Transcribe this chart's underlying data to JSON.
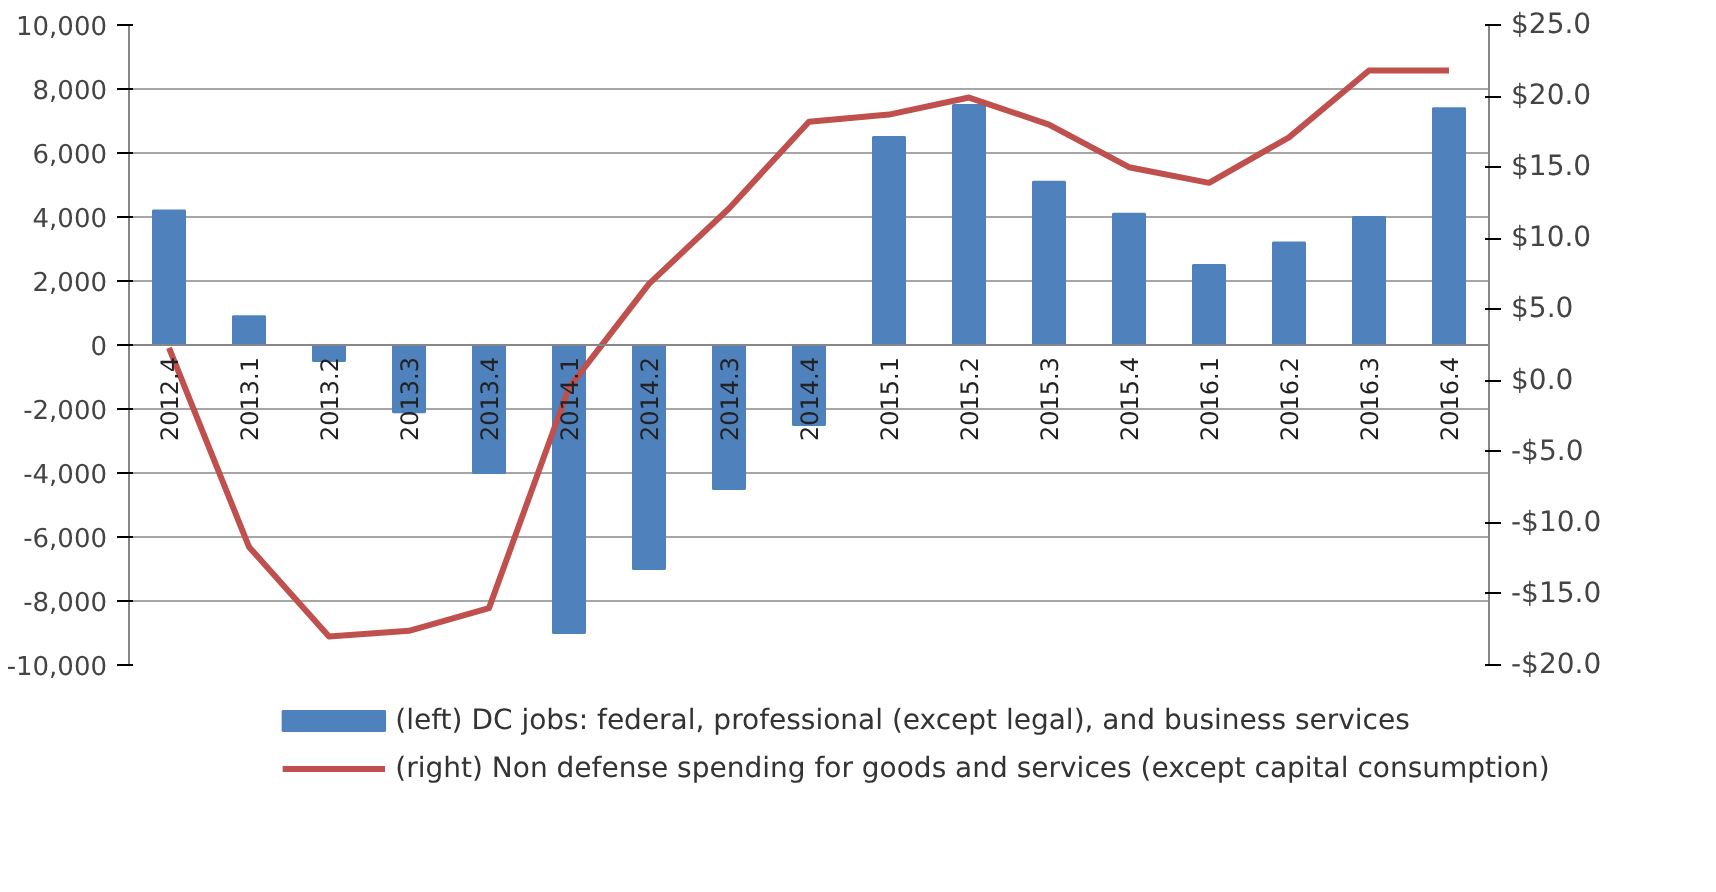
{
  "chart_data": {
    "type": "bar",
    "categories": [
      "2012.4",
      "2013.1",
      "2013.2",
      "2013.3",
      "2013.4",
      "2014.1",
      "2014.2",
      "2014.3",
      "2014.4",
      "2015.1",
      "2015.2",
      "2015.3",
      "2015.4",
      "2016.1",
      "2016.2",
      "2016.3",
      "2016.4"
    ],
    "series": [
      {
        "name": "(left) DC jobs: federal, professional (except legal), and business services",
        "color": "#4f81bd",
        "values": [
          4200,
          900,
          -500,
          -2100,
          -4000,
          -9000,
          -7000,
          -4500,
          -2500,
          6500,
          7500,
          5100,
          4100,
          2500,
          3200,
          4000,
          7400
        ]
      },
      {
        "name": "(right) Non defense spending for goods and services (except capital consumption)",
        "type": "line",
        "axis": "y2",
        "color": "#c0504d",
        "values": [
          2.3,
          -11.7,
          -18.0,
          -17.6,
          -16.0,
          -0.5,
          6.8,
          12.1,
          18.2,
          18.7,
          19.9,
          18.0,
          15.0,
          13.9,
          17.1,
          21.8,
          21.8
        ]
      }
    ],
    "ylim": [
      -10000,
      10000
    ],
    "yticks": [
      {
        "value": -10000,
        "label": "-10,000"
      },
      {
        "value": -8000,
        "label": "-8,000"
      },
      {
        "value": -6000,
        "label": "-6,000"
      },
      {
        "value": -4000,
        "label": "-4,000"
      },
      {
        "value": -2000,
        "label": "-2,000"
      },
      0,
      {
        "value": 2000,
        "label": "2,000"
      },
      {
        "value": 4000,
        "label": "4,000"
      },
      {
        "value": 6000,
        "label": "6,000"
      },
      {
        "value": 8000,
        "label": "8,000"
      },
      {
        "value": 10000,
        "label": "10,000"
      }
    ],
    "y2lim": [
      -20,
      25
    ],
    "y2ticks": [
      {
        "value": -20,
        "label": "-$20.0"
      },
      {
        "value": -15,
        "label": "-$15.0"
      },
      {
        "value": -10,
        "label": "-$10.0"
      },
      {
        "value": -5,
        "label": "-$5.0"
      },
      {
        "value": 0,
        "label": "$0.0"
      },
      {
        "value": 5,
        "label": "$5.0"
      },
      {
        "value": 10,
        "label": "$10.0"
      },
      {
        "value": 15,
        "label": "$15.0"
      },
      {
        "value": 20,
        "label": "$20.0"
      },
      {
        "value": 25,
        "label": "$25.0"
      }
    ],
    "grid": "y",
    "legend": "bottom"
  }
}
